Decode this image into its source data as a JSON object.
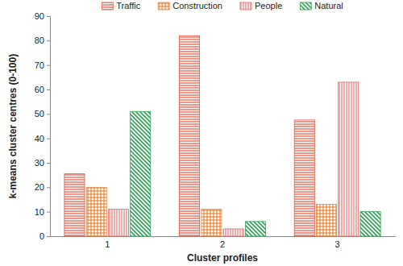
{
  "chart_data": {
    "type": "bar",
    "categories": [
      "1",
      "2",
      "3"
    ],
    "series": [
      {
        "name": "Traffic",
        "color": "#e2533d",
        "values": [
          25.5,
          82,
          47.5
        ]
      },
      {
        "name": "Construction",
        "color": "#e98b3f",
        "values": [
          20,
          11,
          13
        ]
      },
      {
        "name": "People",
        "color": "#e06a6a",
        "values": [
          11,
          3,
          63
        ]
      },
      {
        "name": "Natural",
        "color": "#2f9e55",
        "values": [
          51,
          6,
          10
        ]
      }
    ],
    "x_label": "Cluster profiles",
    "y_label": "k-means cluster centres (0-100)",
    "ylim": [
      0,
      90
    ],
    "yticks": [
      0,
      10,
      20,
      30,
      40,
      50,
      60,
      70,
      80,
      90
    ],
    "legend": "top",
    "grid": false
  }
}
